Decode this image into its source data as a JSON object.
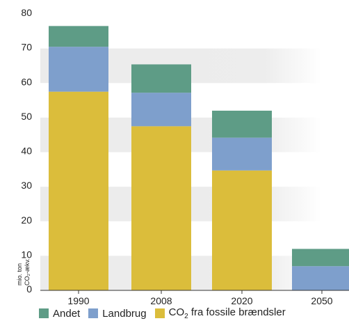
{
  "chart_data": {
    "type": "bar",
    "stacked": true,
    "categories": [
      "1990",
      "2008",
      "2020",
      "2050"
    ],
    "series": [
      {
        "name": "CO₂ fra fossile brændsler",
        "color": "#dbbd3b",
        "values": [
          57.5,
          47.5,
          34.7,
          0
        ]
      },
      {
        "name": "Landbrug",
        "color": "#7e9fcc",
        "values": [
          13.0,
          9.7,
          9.5,
          7.0
        ]
      },
      {
        "name": "Andet",
        "color": "#5e9c86",
        "values": [
          6.0,
          8.2,
          7.8,
          5.0
        ]
      }
    ],
    "ylim": [
      0,
      80
    ],
    "yticks": [
      0,
      10,
      20,
      30,
      40,
      50,
      60,
      70,
      80
    ],
    "ylabel_lines": [
      "mio. ton",
      "CO₂-ækv."
    ],
    "grid": "alternating bands",
    "legend_position": "bottom"
  },
  "legend": {
    "andet": "Andet",
    "landbrug": "Landbrug",
    "co2_prefix": "CO",
    "co2_sub": "2",
    "co2_suffix": " fra fossile brændsler"
  }
}
